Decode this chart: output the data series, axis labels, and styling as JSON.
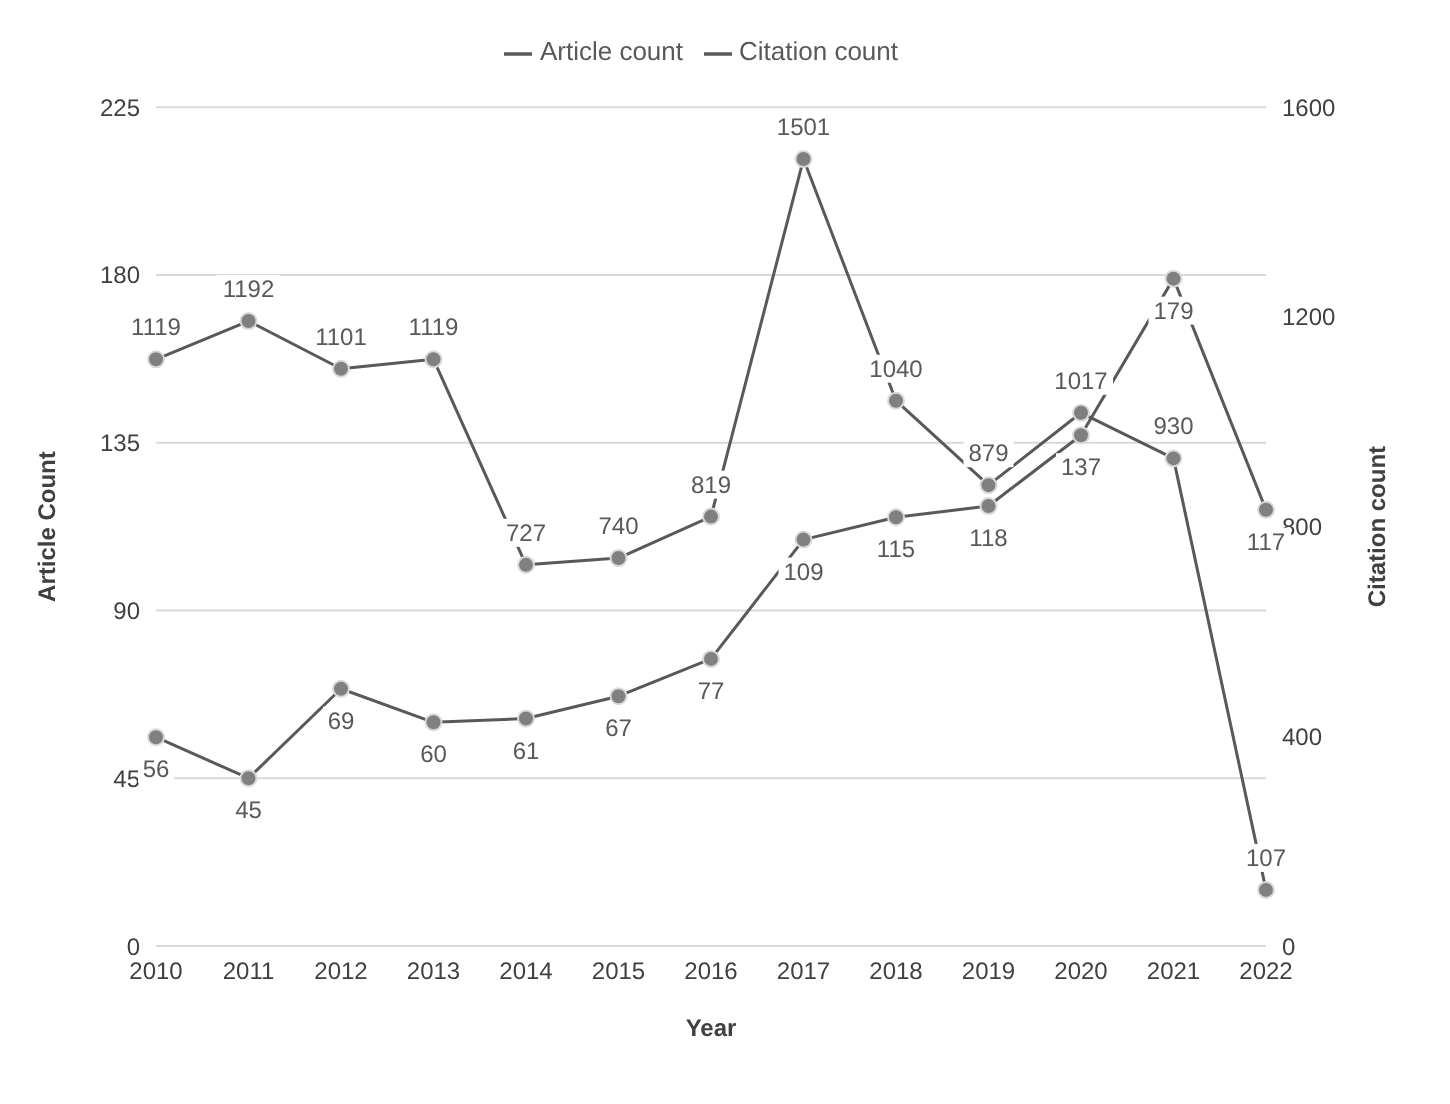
{
  "chart_data": {
    "type": "line",
    "xlabel": "Year",
    "ylabel": "Article Count",
    "y2label": "Citation count",
    "categories": [
      "2010",
      "2011",
      "2012",
      "2013",
      "2014",
      "2015",
      "2016",
      "2017",
      "2018",
      "2019",
      "2020",
      "2021",
      "2022"
    ],
    "series": [
      {
        "name": "Article count",
        "color": "#595959",
        "values": [
          56,
          45,
          69,
          60,
          61,
          67,
          77,
          109,
          115,
          118,
          137,
          179,
          117
        ]
      },
      {
        "name": "Citation count",
        "color": "#595959",
        "axis": "y2",
        "values": [
          1119,
          1192,
          1101,
          1119,
          727,
          740,
          819,
          1501,
          1040,
          879,
          1017,
          930,
          107
        ]
      }
    ],
    "ylim": [
      0,
      225
    ],
    "yticks": [
      0,
      45,
      90,
      135,
      180,
      225
    ],
    "y2lim": [
      0,
      1600
    ],
    "y2ticks": [
      0,
      400,
      800,
      1200,
      1600
    ],
    "grid": "y",
    "legend": "top",
    "marker": "circle",
    "line_style": "solid",
    "data_labels": true
  }
}
